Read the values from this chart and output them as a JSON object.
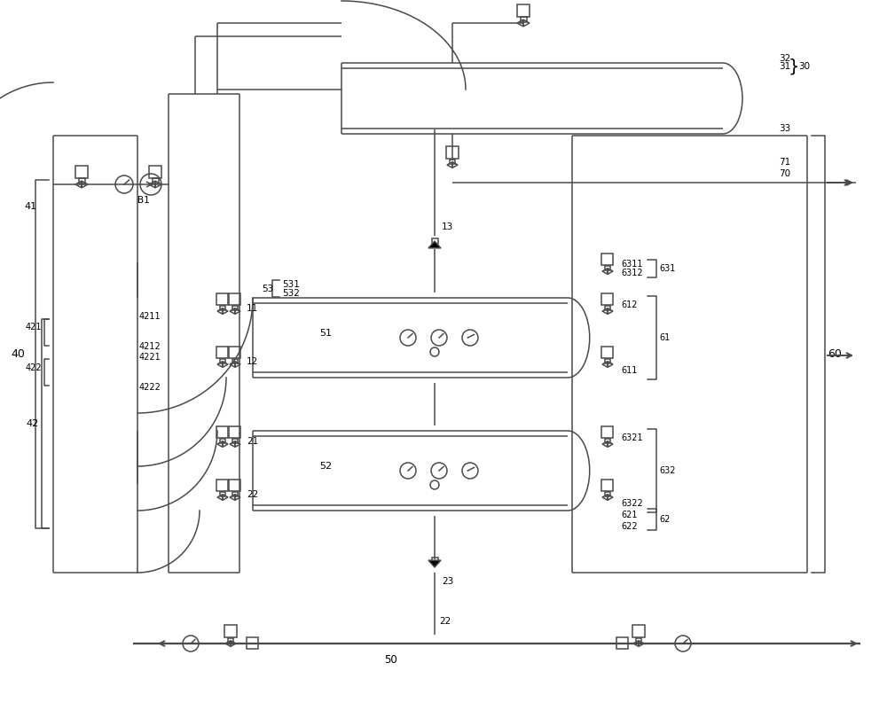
{
  "bg": "#ffffff",
  "lc": "#4a4a4a",
  "lw": 1.1,
  "fig_w": 10.0,
  "fig_h": 8.01
}
